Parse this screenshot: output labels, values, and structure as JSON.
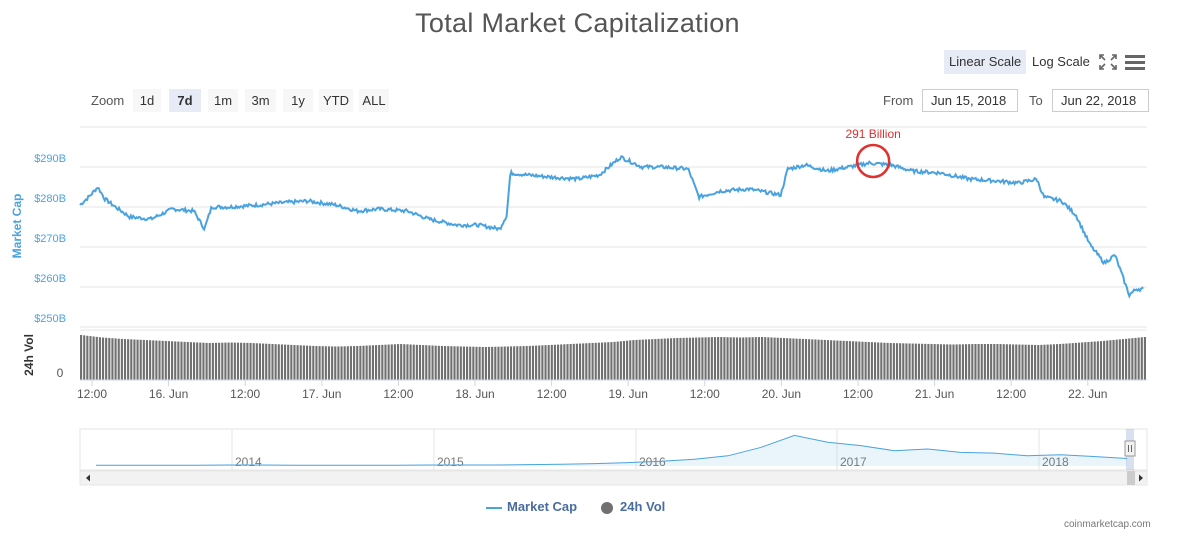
{
  "chart_data": {
    "type": "line",
    "title": "Total Market Capitalization",
    "series": [
      {
        "name": "Market Cap",
        "unit": "USD billions",
        "color": "#4aa3df",
        "points": [
          [
            0,
            280.5
          ],
          [
            0.15,
            283.0
          ],
          [
            0.25,
            285.0
          ],
          [
            0.35,
            282.0
          ],
          [
            0.5,
            280.0
          ],
          [
            0.7,
            277.5
          ],
          [
            1.0,
            277.0
          ],
          [
            1.3,
            279.5
          ],
          [
            1.6,
            279.0
          ],
          [
            1.75,
            274.5
          ],
          [
            1.85,
            280.0
          ],
          [
            2.1,
            280.0
          ],
          [
            2.5,
            280.5
          ],
          [
            2.8,
            281.0
          ],
          [
            3.2,
            281.5
          ],
          [
            3.6,
            280.5
          ],
          [
            3.9,
            279.0
          ],
          [
            4.2,
            279.5
          ],
          [
            4.6,
            279.0
          ],
          [
            4.9,
            277.0
          ],
          [
            5.3,
            275.5
          ],
          [
            5.6,
            275.5
          ],
          [
            5.9,
            274.5
          ],
          [
            6.0,
            278.0
          ],
          [
            6.05,
            288.5
          ],
          [
            6.3,
            288.0
          ],
          [
            6.6,
            287.5
          ],
          [
            7.0,
            287.0
          ],
          [
            7.3,
            288.0
          ],
          [
            7.6,
            292.5
          ],
          [
            7.9,
            290.0
          ],
          [
            8.2,
            290.0
          ],
          [
            8.55,
            289.5
          ],
          [
            8.7,
            282.5
          ],
          [
            9.0,
            284.0
          ],
          [
            9.4,
            284.5
          ],
          [
            9.85,
            283.0
          ],
          [
            9.95,
            289.5
          ],
          [
            10.2,
            290.5
          ],
          [
            10.5,
            289.0
          ],
          [
            10.8,
            290.0
          ],
          [
            11.1,
            291.0
          ],
          [
            11.4,
            290.5
          ],
          [
            11.7,
            289.0
          ],
          [
            12.1,
            288.5
          ],
          [
            12.5,
            287.0
          ],
          [
            12.9,
            286.5
          ],
          [
            13.2,
            286.0
          ],
          [
            13.45,
            287.0
          ],
          [
            13.55,
            282.5
          ],
          [
            13.8,
            281.5
          ],
          [
            14.0,
            278.0
          ],
          [
            14.2,
            270.5
          ],
          [
            14.4,
            266.0
          ],
          [
            14.55,
            268.0
          ],
          [
            14.65,
            263.0
          ],
          [
            14.75,
            258.0
          ],
          [
            14.85,
            259.5
          ],
          [
            14.95,
            259.5
          ]
        ]
      },
      {
        "name": "24h Vol",
        "color": "#707070",
        "relative_levels": [
          0.9,
          0.85,
          0.82,
          0.8,
          0.78,
          0.76,
          0.74,
          0.75,
          0.74,
          0.72,
          0.7,
          0.68,
          0.67,
          0.68,
          0.7,
          0.72,
          0.7,
          0.68,
          0.67,
          0.66,
          0.67,
          0.68,
          0.7,
          0.72,
          0.74,
          0.76,
          0.8,
          0.82,
          0.84,
          0.85,
          0.86,
          0.85,
          0.86,
          0.84,
          0.82,
          0.8,
          0.78,
          0.76,
          0.74,
          0.73,
          0.72,
          0.71,
          0.72,
          0.72,
          0.71,
          0.7,
          0.72,
          0.75,
          0.78,
          0.82,
          0.86
        ]
      }
    ],
    "ylabel": "Market Cap",
    "ylabel2": "24h Vol",
    "yticks": [
      "$290B",
      "$280B",
      "$270B",
      "$260B",
      "$250B"
    ],
    "ylim": [
      250,
      300
    ],
    "vol_tick": "0",
    "xticks": [
      "12:00",
      "16. Jun",
      "12:00",
      "17. Jun",
      "12:00",
      "18. Jun",
      "12:00",
      "19. Jun",
      "12:00",
      "20. Jun",
      "12:00",
      "21. Jun",
      "12:00",
      "22. Jun"
    ],
    "xlim": [
      0,
      15
    ],
    "annotation": {
      "text": "291 Billion",
      "x": 11.15,
      "y": 291.5,
      "color": "#e03030"
    },
    "navigator": {
      "years": [
        "2014",
        "2015",
        "2016",
        "2017",
        "2018"
      ],
      "relative_values": [
        0.02,
        0.02,
        0.02,
        0.02,
        0.03,
        0.03,
        0.02,
        0.02,
        0.02,
        0.02,
        0.03,
        0.03,
        0.03,
        0.04,
        0.05,
        0.07,
        0.1,
        0.14,
        0.2,
        0.3,
        0.55,
        0.9,
        0.7,
        0.6,
        0.45,
        0.5,
        0.4,
        0.38,
        0.3,
        0.33,
        0.28,
        0.22
      ]
    },
    "grid": true,
    "legend": "bottom-center"
  },
  "toolbar": {
    "linear_scale": "Linear Scale",
    "log_scale": "Log Scale",
    "fullscreen_icon": "fullscreen-icon",
    "menu_icon": "hamburger-menu-icon"
  },
  "zoom": {
    "label": "Zoom",
    "buttons": [
      "1d",
      "7d",
      "1m",
      "3m",
      "1y",
      "YTD",
      "ALL"
    ],
    "active": "7d"
  },
  "range": {
    "from_label": "From",
    "from_value": "Jun 15, 2018",
    "to_label": "To",
    "to_value": "Jun 22, 2018"
  },
  "legend": {
    "market_cap": "Market Cap",
    "vol": "24h Vol"
  },
  "credits": "coinmarketcap.com"
}
